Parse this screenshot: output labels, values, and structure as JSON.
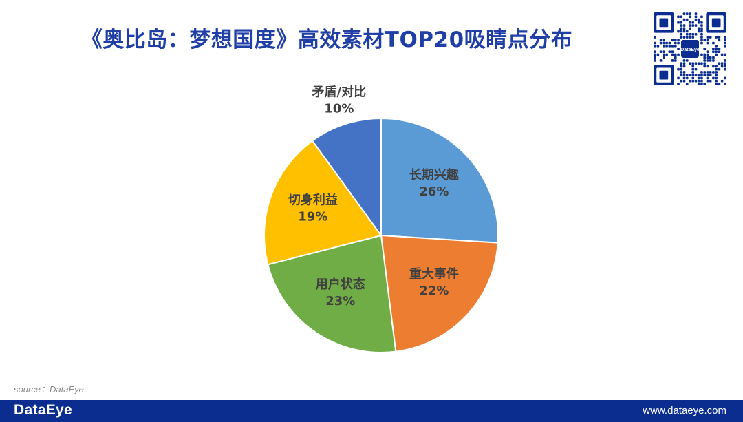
{
  "header": {
    "title": "《奥比岛：梦想国度》高效素材TOP20吸睛点分布"
  },
  "qr_code": {
    "center_label": "DataEye"
  },
  "chart_data": {
    "type": "pie",
    "title": "《奥比岛：梦想国度》高效素材TOP20吸睛点分布",
    "slices": [
      {
        "label": "长期兴趣",
        "value": 26,
        "value_label": "26%",
        "color": "#5b9bd5"
      },
      {
        "label": "重大事件",
        "value": 22,
        "value_label": "22%",
        "color": "#ed7d31"
      },
      {
        "label": "用户状态",
        "value": 23,
        "value_label": "23%",
        "color": "#70ad47"
      },
      {
        "label": "切身利益",
        "value": 19,
        "value_label": "19%",
        "color": "#ffc000"
      },
      {
        "label": "矛盾/对比",
        "value": 10,
        "value_label": "10%",
        "color": "#4472c4"
      }
    ],
    "start_angle_deg": 0,
    "direction": "clockwise"
  },
  "source": {
    "text": "source：DataEye"
  },
  "footer": {
    "logo": "DataEye",
    "url": "www.dataeye.com",
    "color": "#0a2d8f"
  }
}
